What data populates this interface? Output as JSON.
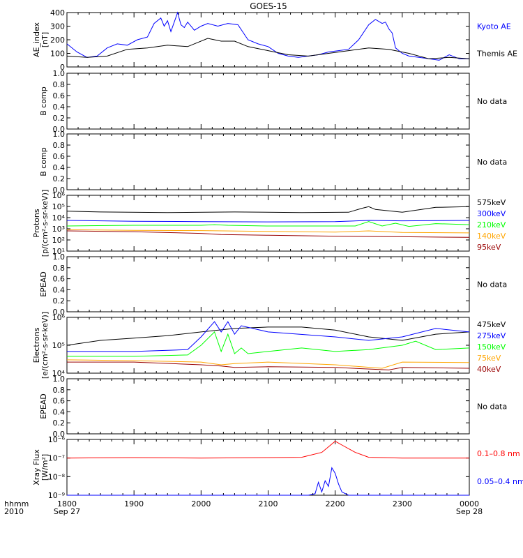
{
  "title": "GOES-15",
  "time_axis": {
    "ticks": [
      {
        "hhmm": "1800",
        "date": "Sep 27"
      },
      {
        "hhmm": "1900",
        "date": ""
      },
      {
        "hhmm": "2000",
        "date": ""
      },
      {
        "hhmm": "2100",
        "date": ""
      },
      {
        "hhmm": "2200",
        "date": ""
      },
      {
        "hhmm": "2300",
        "date": ""
      },
      {
        "hhmm": "0000",
        "date": "Sep 28"
      }
    ],
    "label_hhmm": "hhmm",
    "label_year": "2010"
  },
  "colors": {
    "black": "#000000",
    "blue": "#0000ff",
    "red": "#ff0000",
    "orange": "#ffa500",
    "green": "#00ff00",
    "darkred": "#990000"
  },
  "chart_data": [
    {
      "type": "line",
      "name": "ae_index",
      "ylabel": "AE_index [nT]",
      "ylim": [
        0,
        400
      ],
      "yticks": [
        "0",
        "100",
        "200",
        "300",
        "400"
      ],
      "log": false,
      "x_unit": "hours since 1800 UT Sep 27",
      "series": [
        {
          "name": "Kyoto AE",
          "color": "#0000ff",
          "x": [
            0,
            0.15,
            0.3,
            0.45,
            0.6,
            0.75,
            0.9,
            1.05,
            1.2,
            1.3,
            1.4,
            1.45,
            1.5,
            1.55,
            1.6,
            1.65,
            1.7,
            1.75,
            1.8,
            1.9,
            2.0,
            2.1,
            2.25,
            2.4,
            2.55,
            2.7,
            2.85,
            3.0,
            3.15,
            3.3,
            3.45,
            3.6,
            3.75,
            3.9,
            4.05,
            4.2,
            4.35,
            4.5,
            4.6,
            4.7,
            4.75,
            4.8,
            4.85,
            4.9,
            5.0,
            5.1,
            5.25,
            5.4,
            5.55,
            5.7,
            5.85,
            6.0
          ],
          "y": [
            170,
            110,
            70,
            80,
            140,
            170,
            160,
            200,
            220,
            320,
            360,
            300,
            340,
            260,
            330,
            400,
            310,
            290,
            330,
            270,
            300,
            320,
            300,
            320,
            310,
            200,
            170,
            150,
            100,
            80,
            70,
            80,
            90,
            110,
            120,
            130,
            200,
            310,
            350,
            320,
            330,
            280,
            250,
            140,
            100,
            80,
            70,
            60,
            50,
            90,
            60,
            60
          ]
        },
        {
          "name": "Themis AE",
          "color": "#000000",
          "x": [
            0,
            0.3,
            0.6,
            0.9,
            1.2,
            1.5,
            1.8,
            2.1,
            2.3,
            2.5,
            2.7,
            3.0,
            3.3,
            3.6,
            3.9,
            4.2,
            4.5,
            4.8,
            5.1,
            5.4,
            5.7,
            6.0
          ],
          "y": [
            80,
            70,
            80,
            130,
            140,
            160,
            150,
            210,
            190,
            190,
            150,
            120,
            90,
            80,
            100,
            120,
            140,
            130,
            100,
            60,
            70,
            60
          ]
        }
      ],
      "legend": [
        "Kyoto AE",
        "Themis AE"
      ]
    },
    {
      "type": "line",
      "name": "b_comp_1",
      "ylabel": "B comp",
      "ylim": [
        0,
        1
      ],
      "yticks": [
        "0.0",
        "0.2",
        "0.4",
        "0.6",
        "0.8",
        "1.0"
      ],
      "no_data": "No data",
      "series": []
    },
    {
      "type": "line",
      "name": "b_comp_2",
      "ylabel": "B comp",
      "ylim": [
        0,
        1
      ],
      "yticks": [
        "0.0",
        "0.2",
        "0.4",
        "0.6",
        "0.8",
        "1.0"
      ],
      "no_data": "No data",
      "series": []
    },
    {
      "type": "line",
      "name": "protons",
      "ylabel": "Protons [p/(cm²-s-sr-keV)]",
      "ylim": [
        1,
        1000000
      ],
      "yticks": [
        "10¹",
        "10²",
        "10³",
        "10⁴",
        "10⁵",
        "10⁶"
      ],
      "log": true,
      "series": [
        {
          "name": "575keV",
          "color": "#000000",
          "x": [
            0,
            0.5,
            1.5,
            2.5,
            3.5,
            4.2,
            4.4,
            4.5,
            4.6,
            5.0,
            5.5,
            6.0
          ],
          "y": [
            20000,
            16000,
            14000,
            16000,
            14000,
            15000,
            40000,
            60000,
            30000,
            15000,
            50000,
            60000
          ]
        },
        {
          "name": "300keV",
          "color": "#0000ff",
          "x": [
            0,
            1,
            2,
            3,
            4,
            4.5,
            5,
            6
          ],
          "y": [
            2000,
            1600,
            1500,
            1400,
            1500,
            2000,
            1800,
            2000
          ]
        },
        {
          "name": "210keV",
          "color": "#00ff00",
          "x": [
            0,
            1,
            2,
            2.2,
            2.4,
            3,
            4.3,
            4.5,
            4.7,
            4.9,
            5.1,
            5.5,
            6.0
          ],
          "y": [
            500,
            600,
            600,
            700,
            600,
            500,
            500,
            1500,
            500,
            1000,
            450,
            900,
            700
          ]
        },
        {
          "name": "140keV",
          "color": "#ffa500",
          "x": [
            0,
            1,
            2,
            3,
            4,
            4.5,
            5,
            6
          ],
          "y": [
            200,
            170,
            160,
            130,
            110,
            150,
            100,
            90
          ]
        },
        {
          "name": "95keV",
          "color": "#990000",
          "x": [
            0,
            1,
            2,
            2.3,
            3,
            4,
            5,
            6
          ],
          "y": [
            150,
            120,
            80,
            60,
            50,
            40,
            35,
            30
          ]
        }
      ],
      "legend": [
        "575keV",
        "300keV",
        "210keV",
        "140keV",
        "95keV"
      ]
    },
    {
      "type": "line",
      "name": "epead_1",
      "ylabel": "EPEAD",
      "ylim": [
        0,
        1
      ],
      "yticks": [
        "0.0",
        "0.2",
        "0.4",
        "0.6",
        "0.8",
        "1.0"
      ],
      "no_data": "No data",
      "series": []
    },
    {
      "type": "line",
      "name": "electrons",
      "ylabel": "Electrons [e/(cm²-s-sr-keV)]",
      "ylim": [
        10000,
        1000000
      ],
      "yticks": [
        "10⁴",
        "10⁵",
        "10⁶"
      ],
      "log": true,
      "series": [
        {
          "name": "475keV",
          "color": "#000000",
          "x": [
            0,
            0.5,
            1,
            1.5,
            2,
            2.5,
            3,
            3.5,
            4,
            4.5,
            5,
            5.5,
            6
          ],
          "y": [
            100000,
            150000,
            180000,
            220000,
            300000,
            400000,
            450000,
            450000,
            350000,
            200000,
            150000,
            250000,
            300000
          ]
        },
        {
          "name": "275keV",
          "color": "#0000ff",
          "x": [
            0,
            1,
            1.8,
            2,
            2.2,
            2.3,
            2.4,
            2.5,
            2.6,
            3,
            4,
            4.5,
            5,
            5.5,
            6
          ],
          "y": [
            60000,
            60000,
            70000,
            200000,
            700000,
            300000,
            700000,
            250000,
            500000,
            300000,
            200000,
            150000,
            200000,
            400000,
            300000
          ]
        },
        {
          "name": "150keV",
          "color": "#00ff00",
          "x": [
            0,
            1,
            1.8,
            2,
            2.2,
            2.3,
            2.4,
            2.5,
            2.6,
            2.7,
            3,
            3.5,
            4,
            4.5,
            5,
            5.2,
            5.5,
            6
          ],
          "y": [
            40000,
            40000,
            45000,
            100000,
            300000,
            60000,
            250000,
            50000,
            80000,
            50000,
            60000,
            80000,
            60000,
            70000,
            100000,
            140000,
            70000,
            80000
          ]
        },
        {
          "name": "75keV",
          "color": "#ffa500",
          "x": [
            0,
            1,
            2,
            2.3,
            2.5,
            3,
            4,
            4.7,
            5,
            6
          ],
          "y": [
            30000,
            28000,
            25000,
            20000,
            22000,
            25000,
            20000,
            15000,
            25000,
            24000
          ]
        },
        {
          "name": "40keV",
          "color": "#990000",
          "x": [
            0,
            1,
            2,
            2.3,
            2.5,
            3,
            4,
            4.8,
            5,
            6
          ],
          "y": [
            25000,
            25000,
            20000,
            18000,
            16000,
            17000,
            16000,
            13000,
            16000,
            15000
          ]
        }
      ],
      "legend": [
        "475keV",
        "275keV",
        "150keV",
        "75keV",
        "40keV"
      ]
    },
    {
      "type": "line",
      "name": "epead_2",
      "ylabel": "EPEAD",
      "ylim": [
        0,
        1
      ],
      "yticks": [
        "0.0",
        "0.2",
        "0.4",
        "0.6",
        "0.8",
        "1.0"
      ],
      "no_data": "No data",
      "series": []
    },
    {
      "type": "line",
      "name": "xray",
      "ylabel": "Xray Flux [W/m²]",
      "ylim": [
        1e-09,
        1e-06
      ],
      "yticks": [
        "10⁻⁹",
        "10⁻⁸",
        "10⁻⁷",
        "10⁻⁶"
      ],
      "log": true,
      "series": [
        {
          "name": "0.1–0.8 nm",
          "color": "#ff0000",
          "x": [
            0,
            1,
            2,
            3,
            3.5,
            3.8,
            3.9,
            4.0,
            4.1,
            4.3,
            4.5,
            5,
            6
          ],
          "y": [
            1e-07,
            1.05e-07,
            1e-07,
            1.05e-07,
            1.1e-07,
            2e-07,
            4e-07,
            8e-07,
            5e-07,
            2e-07,
            1.1e-07,
            1e-07,
            1e-07
          ]
        },
        {
          "name": "0.05–0.4 nm",
          "color": "#0000ff",
          "x": [
            0,
            3.6,
            3.7,
            3.75,
            3.8,
            3.85,
            3.9,
            3.95,
            4.0,
            4.05,
            4.1,
            4.2,
            6
          ],
          "y": [
            1e-09,
            1e-09,
            1.2e-09,
            5e-09,
            1.5e-09,
            6e-09,
            3e-09,
            3e-08,
            1.5e-08,
            4e-09,
            1.5e-09,
            1e-09,
            1e-09
          ]
        }
      ],
      "legend": [
        "0.1–0.8 nm",
        "0.05–0.4 nm"
      ]
    }
  ]
}
